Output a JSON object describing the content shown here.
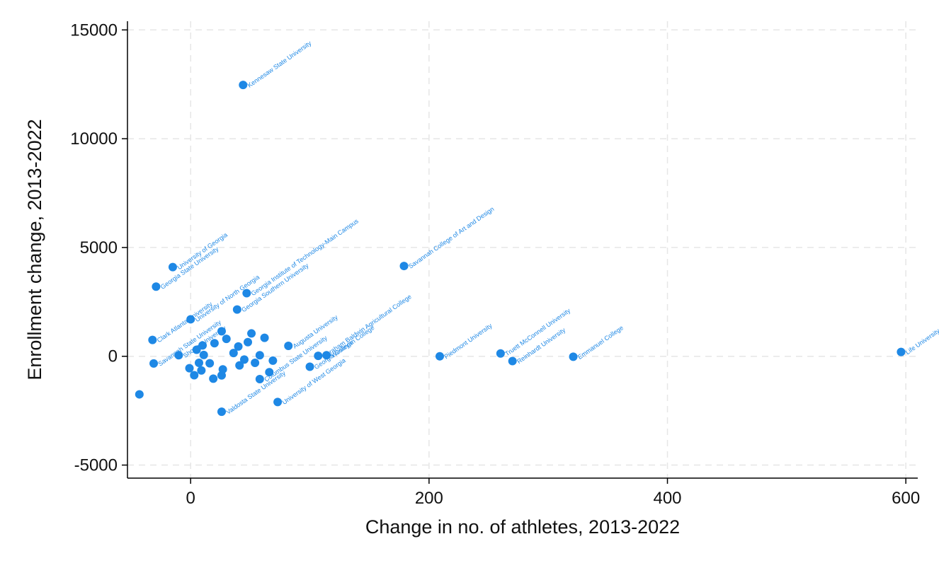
{
  "chart_data": {
    "type": "scatter",
    "title": "",
    "xlabel": "Change in no. of athletes, 2013-2022",
    "ylabel": "Enrollment change, 2013-2022",
    "xlim": [
      -53,
      610
    ],
    "ylim": [
      -5600,
      15400
    ],
    "xticks": [
      0,
      200,
      400,
      600
    ],
    "yticks": [
      -5000,
      0,
      5000,
      10000,
      15000
    ],
    "xtick_labels": [
      "0",
      "200",
      "400",
      "600"
    ],
    "ytick_labels": [
      "-5000",
      "0",
      "5000",
      "10000",
      "15000"
    ],
    "grid": true,
    "legend": "none",
    "marker_color": "#1e88e5",
    "label_color": "#1e88e5",
    "points": [
      {
        "x": 44,
        "y": 12470,
        "label": "Kennesaw State University"
      },
      {
        "x": -15,
        "y": 4100,
        "label": "University of Georgia"
      },
      {
        "x": -29,
        "y": 3200,
        "label": "Georgia State University"
      },
      {
        "x": 179,
        "y": 4150,
        "label": "Savannah College of Art and Design"
      },
      {
        "x": 47,
        "y": 2900,
        "label": "Georgia Institute of Technology-Main Campus"
      },
      {
        "x": 39,
        "y": 2150,
        "label": "Georgia Southern University"
      },
      {
        "x": 0,
        "y": 1700,
        "label": "University of North Georgia"
      },
      {
        "x": -32,
        "y": 750,
        "label": "Clark Atlanta University"
      },
      {
        "x": -10,
        "y": 50,
        "label": "Shorter University"
      },
      {
        "x": -31,
        "y": -330,
        "label": "Savannah State University"
      },
      {
        "x": -43,
        "y": -1750,
        "label": ""
      },
      {
        "x": 26,
        "y": -2550,
        "label": "Valdosta State University"
      },
      {
        "x": 73,
        "y": -2100,
        "label": "University of West Georgia"
      },
      {
        "x": 58,
        "y": -1050,
        "label": "Columbus State University"
      },
      {
        "x": 100,
        "y": -480,
        "label": "Georgia College"
      },
      {
        "x": 107,
        "y": 20,
        "label": "Abraham Baldwin Agricultural College"
      },
      {
        "x": 114,
        "y": 50,
        "label": "Wesleyan College"
      },
      {
        "x": 82,
        "y": 480,
        "label": "Augusta University"
      },
      {
        "x": 209,
        "y": 0,
        "label": "Piedmont University"
      },
      {
        "x": 260,
        "y": 130,
        "label": "Truett McConnell University"
      },
      {
        "x": 270,
        "y": -220,
        "label": "Reinhardt University"
      },
      {
        "x": 321,
        "y": -20,
        "label": "Emmanuel College"
      },
      {
        "x": 596,
        "y": 200,
        "label": "Life University"
      },
      {
        "x": 26,
        "y": 1150,
        "label": ""
      },
      {
        "x": 40,
        "y": 450,
        "label": ""
      },
      {
        "x": 51,
        "y": 1050,
        "label": ""
      },
      {
        "x": 62,
        "y": 850,
        "label": ""
      },
      {
        "x": 54,
        "y": -300,
        "label": ""
      },
      {
        "x": 36,
        "y": 150,
        "label": ""
      },
      {
        "x": 5,
        "y": 300,
        "label": ""
      },
      {
        "x": 11,
        "y": 60,
        "label": ""
      },
      {
        "x": 16,
        "y": -320,
        "label": ""
      },
      {
        "x": 9,
        "y": -650,
        "label": ""
      },
      {
        "x": 3,
        "y": -870,
        "label": ""
      },
      {
        "x": -1,
        "y": -550,
        "label": ""
      },
      {
        "x": 19,
        "y": -1030,
        "label": ""
      },
      {
        "x": 26,
        "y": -880,
        "label": ""
      },
      {
        "x": 27,
        "y": -600,
        "label": ""
      },
      {
        "x": 41,
        "y": -420,
        "label": ""
      },
      {
        "x": 66,
        "y": -730,
        "label": ""
      },
      {
        "x": 69,
        "y": -200,
        "label": ""
      },
      {
        "x": 58,
        "y": 50,
        "label": ""
      },
      {
        "x": 45,
        "y": -150,
        "label": ""
      },
      {
        "x": 10,
        "y": 500,
        "label": ""
      },
      {
        "x": 20,
        "y": 600,
        "label": ""
      },
      {
        "x": 30,
        "y": 800,
        "label": ""
      },
      {
        "x": 48,
        "y": 650,
        "label": ""
      },
      {
        "x": 7,
        "y": -300,
        "label": ""
      }
    ]
  }
}
